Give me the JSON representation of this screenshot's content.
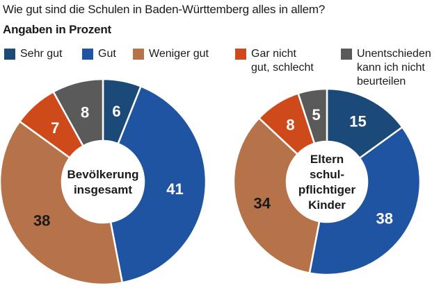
{
  "title": "Wie gut sind die Schulen in Baden-Württemberg alles in allem?",
  "subtitle": "Angaben in Prozent",
  "legend": [
    {
      "label": "Sehr gut",
      "color": "#1c4a78"
    },
    {
      "label": "Gut",
      "color": "#1f54a2"
    },
    {
      "label": "Weniger gut",
      "color": "#b6734a"
    },
    {
      "label": "Gar nicht\ngut, schlecht",
      "color": "#cf4a1a"
    },
    {
      "label": "Unentschieden\nkann ich nicht\nbeurteilen",
      "color": "#5a5a5a"
    }
  ],
  "chart_data": [
    {
      "type": "pie",
      "donut": true,
      "center_label": [
        "Bevölkerung",
        "insgesamt"
      ],
      "categories": [
        "Sehr gut",
        "Gut",
        "Weniger gut",
        "Gar nicht gut, schlecht",
        "Unentschieden kann ich nicht beurteilen"
      ],
      "values": [
        6,
        41,
        38,
        7,
        8
      ],
      "label_colors": [
        "#ffffff",
        "#ffffff",
        "#1a1a1a",
        "#ffffff",
        "#ffffff"
      ]
    },
    {
      "type": "pie",
      "donut": true,
      "center_label": [
        "Eltern",
        "schul-",
        "pflichtiger",
        "Kinder"
      ],
      "categories": [
        "Sehr gut",
        "Gut",
        "Weniger gut",
        "Gar nicht gut, schlecht",
        "Unentschieden kann ich nicht beurteilen"
      ],
      "values": [
        15,
        38,
        34,
        8,
        5
      ],
      "label_colors": [
        "#ffffff",
        "#ffffff",
        "#1a1a1a",
        "#ffffff",
        "#ffffff"
      ]
    }
  ]
}
